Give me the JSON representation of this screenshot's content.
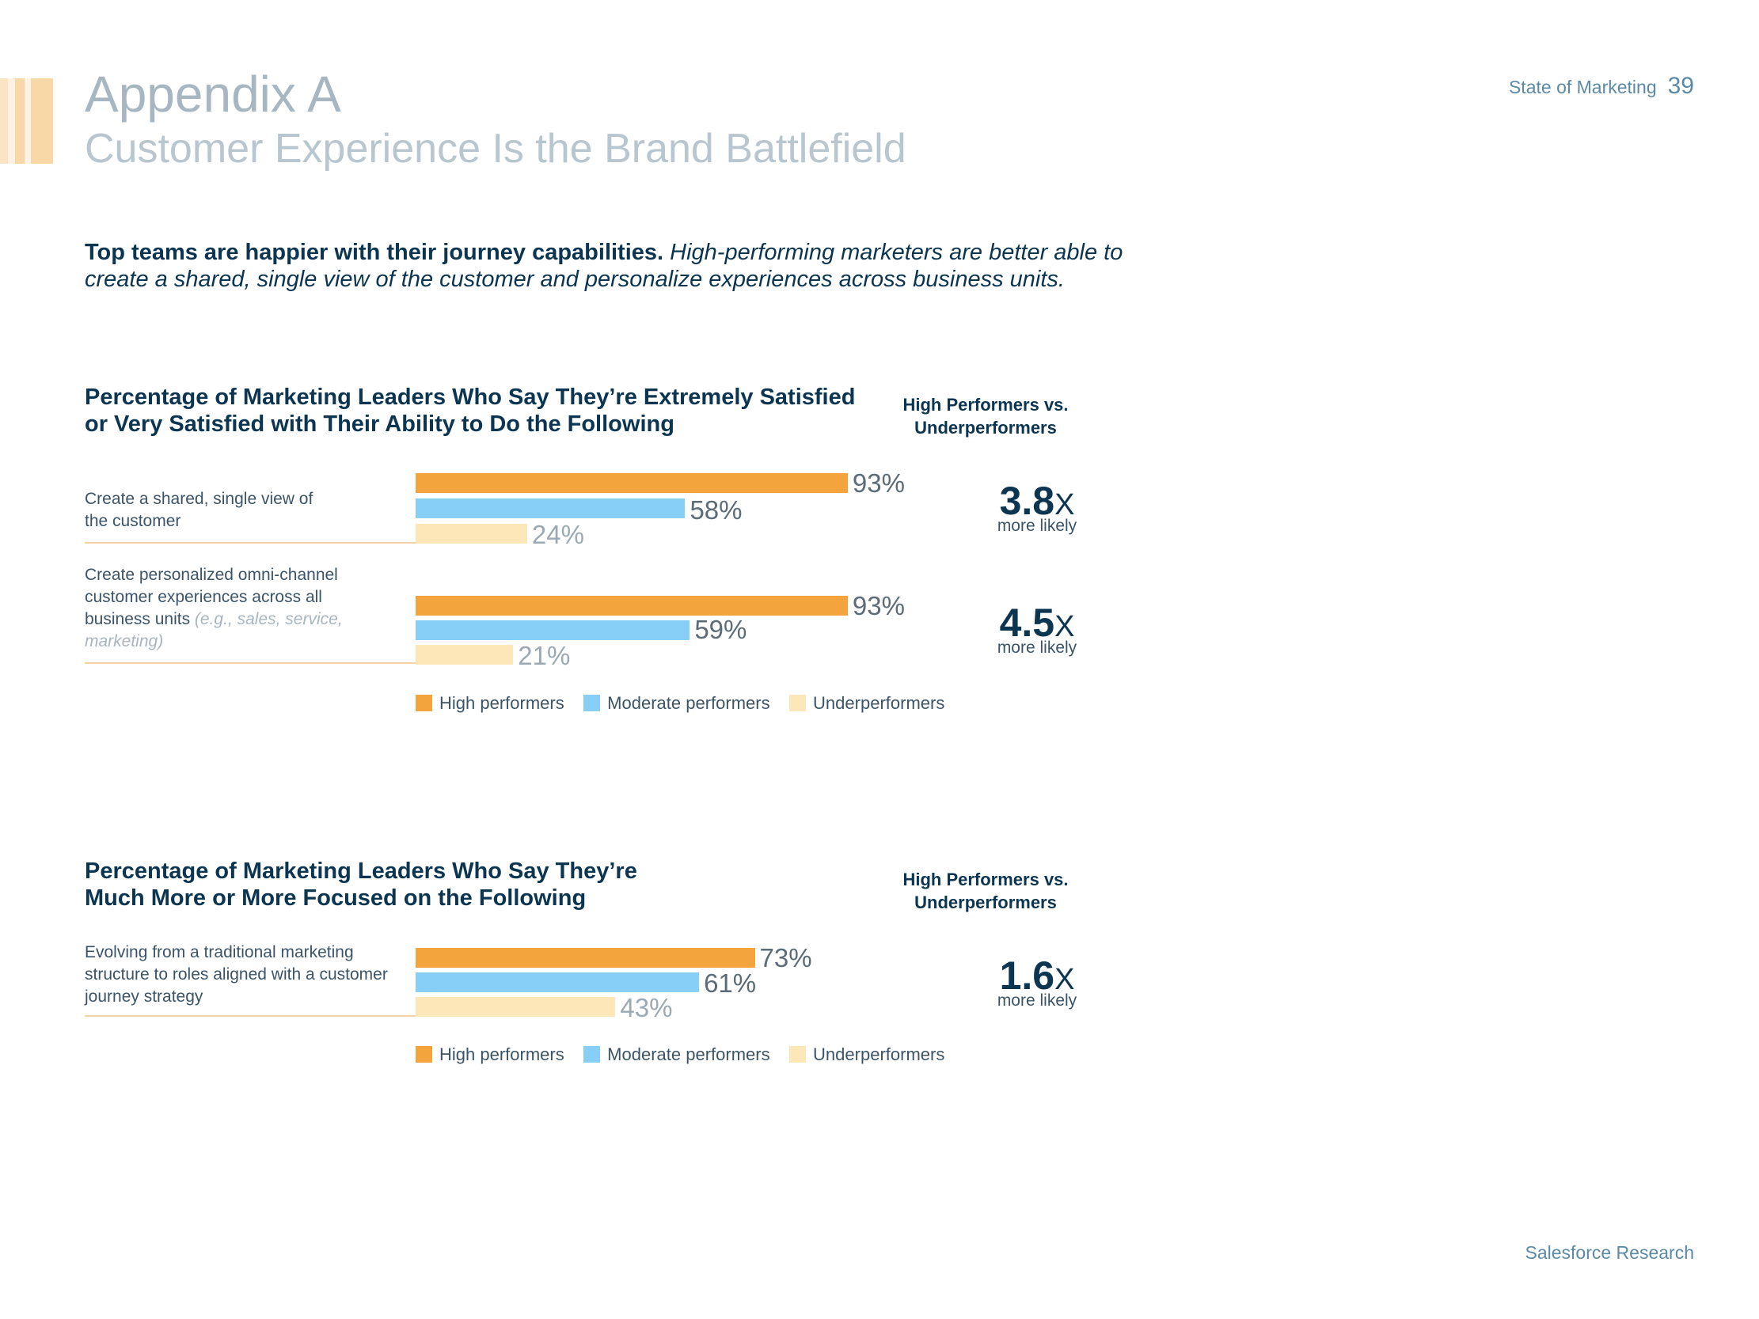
{
  "header": {
    "title": "Appendix A",
    "subtitle": "Customer Experience Is the Brand Battlefield",
    "report_label": "State of Marketing",
    "page_number": "39"
  },
  "intro": {
    "bold": "Top teams are happier with their journey capabilities.",
    "italic": "High-performing marketers are better able to create a shared, single view of the customer and personalize experiences across business units."
  },
  "footer": {
    "text": "Salesforce Research"
  },
  "colors": {
    "high": "#f3a43c",
    "moderate": "#87cff7",
    "under": "#fde6b8"
  },
  "chart_data": [
    {
      "type": "bar",
      "orientation": "horizontal",
      "title": "Percentage of Marketing Leaders Who Say They’re Extremely Satisfied or Very Satisfied with Their Ability to Do the Following",
      "comparison_heading": "High Performers vs. Underperformers",
      "xlim": [
        0,
        100
      ],
      "legend": [
        "High performers",
        "Moderate performers",
        "Underperformers"
      ],
      "categories": [
        {
          "label": "Create a shared, single view of the customer",
          "note": "",
          "values": [
            93,
            58,
            24
          ],
          "value_labels": [
            "93%",
            "58%",
            "24%"
          ],
          "multiplier": "3.8",
          "multiplier_suffix": "X",
          "multiplier_text": "more likely"
        },
        {
          "label": "Create personalized omni-channel customer experiences across all business units",
          "note": "(e.g., sales, service, marketing)",
          "values": [
            93,
            59,
            21
          ],
          "value_labels": [
            "93%",
            "59%",
            "21%"
          ],
          "multiplier": "4.5",
          "multiplier_suffix": "X",
          "multiplier_text": "more likely"
        }
      ]
    },
    {
      "type": "bar",
      "orientation": "horizontal",
      "title": "Percentage of Marketing Leaders Who Say They’re Much More or More Focused on the Following",
      "comparison_heading": "High Performers vs. Underperformers",
      "xlim": [
        0,
        100
      ],
      "legend": [
        "High performers",
        "Moderate performers",
        "Underperformers"
      ],
      "categories": [
        {
          "label": "Evolving from a traditional marketing structure to roles aligned with a customer journey strategy",
          "note": "",
          "values": [
            73,
            61,
            43
          ],
          "value_labels": [
            "73%",
            "61%",
            "43%"
          ],
          "multiplier": "1.6",
          "multiplier_suffix": "X",
          "multiplier_text": "more likely"
        }
      ]
    }
  ]
}
